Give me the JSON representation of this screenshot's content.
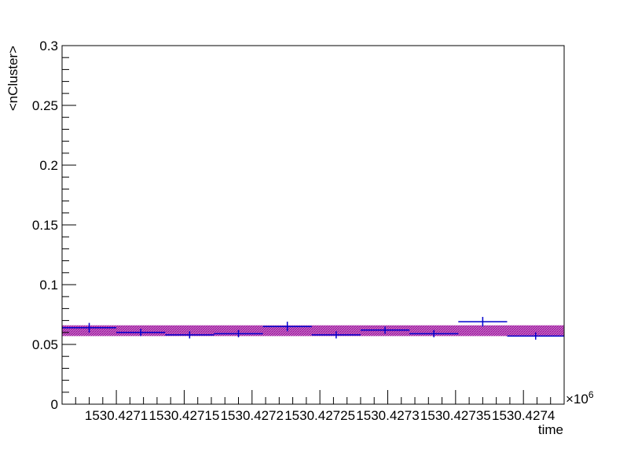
{
  "chart_data": {
    "type": "scatter",
    "title": "",
    "xlabel": "time",
    "ylabel": "<nCluster>",
    "x_exponent_label": "×10",
    "x_exponent_power": "6",
    "xlim": [
      1530.42706,
      1530.42743
    ],
    "ylim": [
      0,
      0.3
    ],
    "grid": false,
    "legend": "none",
    "y_ticks": [
      {
        "value": 0,
        "label": "0"
      },
      {
        "value": 0.05,
        "label": "0.05"
      },
      {
        "value": 0.1,
        "label": "0.1"
      },
      {
        "value": 0.15,
        "label": "0.15"
      },
      {
        "value": 0.2,
        "label": "0.2"
      },
      {
        "value": 0.25,
        "label": "0.25"
      },
      {
        "value": 0.3,
        "label": "0.3"
      }
    ],
    "x_ticks": [
      {
        "value": 1530.4271,
        "label": "1530.4271"
      },
      {
        "value": 1530.42715,
        "label": "1530.42715"
      },
      {
        "value": 1530.4272,
        "label": "1530.4272"
      },
      {
        "value": 1530.42725,
        "label": "1530.42725"
      },
      {
        "value": 1530.4273,
        "label": "1530.4273"
      },
      {
        "value": 1530.42735,
        "label": "1530.42735"
      },
      {
        "value": 1530.4274,
        "label": "1530.4274"
      }
    ],
    "band": {
      "y_low": 0.057,
      "y_high": 0.066,
      "color": "#990099"
    },
    "series": [
      {
        "color": "#0000cc",
        "points": [
          {
            "x_low": 1530.42706,
            "x_high": 1530.4271,
            "y": 0.064,
            "err": 0.004
          },
          {
            "x_low": 1530.4271,
            "x_high": 1530.427136,
            "y": 0.06,
            "err": 0.003
          },
          {
            "x_low": 1530.427136,
            "x_high": 1530.427172,
            "y": 0.058,
            "err": 0.003
          },
          {
            "x_low": 1530.427172,
            "x_high": 1530.427208,
            "y": 0.059,
            "err": 0.003
          },
          {
            "x_low": 1530.427208,
            "x_high": 1530.427244,
            "y": 0.065,
            "err": 0.004
          },
          {
            "x_low": 1530.427244,
            "x_high": 1530.42728,
            "y": 0.058,
            "err": 0.003
          },
          {
            "x_low": 1530.42728,
            "x_high": 1530.427316,
            "y": 0.062,
            "err": 0.003
          },
          {
            "x_low": 1530.427316,
            "x_high": 1530.427352,
            "y": 0.059,
            "err": 0.003
          },
          {
            "x_low": 1530.427352,
            "x_high": 1530.427388,
            "y": 0.069,
            "err": 0.004
          },
          {
            "x_low": 1530.427388,
            "x_high": 1530.42743,
            "y": 0.057,
            "err": 0.003
          }
        ]
      }
    ]
  }
}
